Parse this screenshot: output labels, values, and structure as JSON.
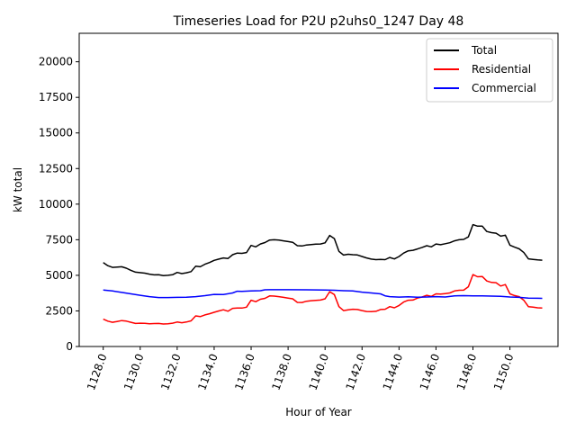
{
  "chart_data": {
    "type": "line",
    "title": "Timeseries Load for P2U p2uhs0_1247  Day 48",
    "xlabel": "Hour of Year",
    "ylabel": "kW total",
    "xlim": [
      1126.7,
      1152.6
    ],
    "ylim": [
      0,
      22000
    ],
    "x_ticks": [
      1128.0,
      1130.0,
      1132.0,
      1134.0,
      1136.0,
      1138.0,
      1140.0,
      1142.0,
      1144.0,
      1146.0,
      1148.0,
      1150.0
    ],
    "x_tick_labels": [
      "1128.0",
      "1130.0",
      "1132.0",
      "1134.0",
      "1136.0",
      "1138.0",
      "1140.0",
      "1142.0",
      "1144.0",
      "1146.0",
      "1148.0",
      "1150.0"
    ],
    "y_ticks": [
      0,
      2500,
      5000,
      7500,
      10000,
      12500,
      15000,
      17500,
      20000
    ],
    "y_tick_labels": [
      "0",
      "2500",
      "5000",
      "7500",
      "10000",
      "12500",
      "15000",
      "17500",
      "20000"
    ],
    "grid": false,
    "legend_position": "top-right",
    "series": [
      {
        "name": "Total",
        "color": "#000000",
        "points": [
          [
            1128.0,
            5900
          ],
          [
            1128.25,
            5680
          ],
          [
            1128.5,
            5560
          ],
          [
            1129.0,
            5600
          ],
          [
            1129.25,
            5500
          ],
          [
            1129.5,
            5350
          ],
          [
            1129.75,
            5220
          ],
          [
            1130.25,
            5150
          ],
          [
            1130.5,
            5080
          ],
          [
            1130.75,
            5030
          ],
          [
            1131.0,
            5040
          ],
          [
            1131.25,
            4980
          ],
          [
            1131.5,
            5000
          ],
          [
            1131.75,
            5040
          ],
          [
            1132.0,
            5200
          ],
          [
            1132.25,
            5120
          ],
          [
            1132.5,
            5180
          ],
          [
            1132.75,
            5260
          ],
          [
            1133.0,
            5640
          ],
          [
            1133.25,
            5600
          ],
          [
            1133.5,
            5780
          ],
          [
            1133.75,
            5900
          ],
          [
            1134.0,
            6050
          ],
          [
            1134.25,
            6140
          ],
          [
            1134.5,
            6220
          ],
          [
            1134.75,
            6180
          ],
          [
            1135.0,
            6450
          ],
          [
            1135.25,
            6560
          ],
          [
            1135.5,
            6540
          ],
          [
            1135.75,
            6600
          ],
          [
            1136.0,
            7100
          ],
          [
            1136.25,
            7000
          ],
          [
            1136.5,
            7200
          ],
          [
            1136.75,
            7300
          ],
          [
            1137.0,
            7480
          ],
          [
            1137.25,
            7500
          ],
          [
            1137.5,
            7470
          ],
          [
            1137.75,
            7420
          ],
          [
            1138.0,
            7370
          ],
          [
            1138.25,
            7320
          ],
          [
            1138.5,
            7080
          ],
          [
            1138.75,
            7060
          ],
          [
            1139.0,
            7130
          ],
          [
            1139.25,
            7160
          ],
          [
            1139.5,
            7190
          ],
          [
            1139.75,
            7200
          ],
          [
            1140.0,
            7280
          ],
          [
            1140.25,
            7800
          ],
          [
            1140.5,
            7580
          ],
          [
            1140.75,
            6680
          ],
          [
            1141.0,
            6420
          ],
          [
            1141.25,
            6480
          ],
          [
            1141.5,
            6450
          ],
          [
            1141.75,
            6430
          ],
          [
            1142.0,
            6320
          ],
          [
            1142.25,
            6220
          ],
          [
            1142.5,
            6140
          ],
          [
            1142.75,
            6100
          ],
          [
            1143.0,
            6120
          ],
          [
            1143.25,
            6100
          ],
          [
            1143.5,
            6250
          ],
          [
            1143.75,
            6150
          ],
          [
            1144.0,
            6320
          ],
          [
            1144.25,
            6560
          ],
          [
            1144.5,
            6720
          ],
          [
            1144.75,
            6760
          ],
          [
            1145.0,
            6850
          ],
          [
            1145.25,
            6960
          ],
          [
            1145.5,
            7080
          ],
          [
            1145.75,
            7000
          ],
          [
            1146.0,
            7200
          ],
          [
            1146.25,
            7150
          ],
          [
            1146.5,
            7220
          ],
          [
            1146.75,
            7290
          ],
          [
            1147.0,
            7420
          ],
          [
            1147.25,
            7500
          ],
          [
            1147.5,
            7520
          ],
          [
            1147.75,
            7700
          ],
          [
            1148.0,
            8560
          ],
          [
            1148.25,
            8450
          ],
          [
            1148.5,
            8450
          ],
          [
            1148.75,
            8080
          ],
          [
            1149.0,
            8000
          ],
          [
            1149.25,
            7960
          ],
          [
            1149.5,
            7750
          ],
          [
            1149.75,
            7820
          ],
          [
            1150.0,
            7120
          ],
          [
            1150.25,
            6980
          ],
          [
            1150.5,
            6860
          ],
          [
            1150.75,
            6600
          ],
          [
            1151.0,
            6160
          ],
          [
            1151.25,
            6120
          ],
          [
            1151.5,
            6080
          ],
          [
            1151.75,
            6060
          ]
        ]
      },
      {
        "name": "Residential",
        "color": "#ff0000",
        "points": [
          [
            1128.0,
            1920
          ],
          [
            1128.25,
            1780
          ],
          [
            1128.5,
            1700
          ],
          [
            1128.75,
            1760
          ],
          [
            1129.0,
            1820
          ],
          [
            1129.25,
            1780
          ],
          [
            1129.5,
            1700
          ],
          [
            1129.75,
            1620
          ],
          [
            1130.0,
            1640
          ],
          [
            1130.25,
            1630
          ],
          [
            1130.5,
            1600
          ],
          [
            1130.75,
            1610
          ],
          [
            1131.0,
            1620
          ],
          [
            1131.25,
            1580
          ],
          [
            1131.5,
            1600
          ],
          [
            1131.75,
            1640
          ],
          [
            1132.0,
            1720
          ],
          [
            1132.25,
            1670
          ],
          [
            1132.5,
            1720
          ],
          [
            1132.75,
            1800
          ],
          [
            1133.0,
            2150
          ],
          [
            1133.25,
            2100
          ],
          [
            1133.5,
            2220
          ],
          [
            1133.75,
            2300
          ],
          [
            1134.0,
            2400
          ],
          [
            1134.25,
            2500
          ],
          [
            1134.5,
            2580
          ],
          [
            1134.75,
            2480
          ],
          [
            1135.0,
            2680
          ],
          [
            1135.25,
            2700
          ],
          [
            1135.5,
            2700
          ],
          [
            1135.75,
            2760
          ],
          [
            1136.0,
            3250
          ],
          [
            1136.25,
            3150
          ],
          [
            1136.5,
            3320
          ],
          [
            1136.75,
            3380
          ],
          [
            1137.0,
            3550
          ],
          [
            1137.25,
            3540
          ],
          [
            1137.5,
            3500
          ],
          [
            1137.75,
            3450
          ],
          [
            1138.0,
            3400
          ],
          [
            1138.25,
            3350
          ],
          [
            1138.5,
            3100
          ],
          [
            1138.75,
            3090
          ],
          [
            1139.0,
            3180
          ],
          [
            1139.25,
            3220
          ],
          [
            1139.5,
            3240
          ],
          [
            1139.75,
            3260
          ],
          [
            1140.0,
            3350
          ],
          [
            1140.25,
            3850
          ],
          [
            1140.5,
            3650
          ],
          [
            1140.75,
            2800
          ],
          [
            1141.0,
            2520
          ],
          [
            1141.25,
            2580
          ],
          [
            1141.5,
            2620
          ],
          [
            1141.75,
            2600
          ],
          [
            1142.0,
            2520
          ],
          [
            1142.25,
            2460
          ],
          [
            1142.5,
            2450
          ],
          [
            1142.75,
            2470
          ],
          [
            1143.0,
            2600
          ],
          [
            1143.25,
            2620
          ],
          [
            1143.5,
            2800
          ],
          [
            1143.75,
            2720
          ],
          [
            1144.0,
            2880
          ],
          [
            1144.25,
            3120
          ],
          [
            1144.5,
            3250
          ],
          [
            1144.75,
            3260
          ],
          [
            1145.0,
            3400
          ],
          [
            1145.25,
            3480
          ],
          [
            1145.5,
            3600
          ],
          [
            1145.75,
            3520
          ],
          [
            1146.0,
            3700
          ],
          [
            1146.25,
            3680
          ],
          [
            1146.5,
            3720
          ],
          [
            1146.75,
            3760
          ],
          [
            1147.0,
            3900
          ],
          [
            1147.25,
            3950
          ],
          [
            1147.5,
            3960
          ],
          [
            1147.75,
            4200
          ],
          [
            1148.0,
            5050
          ],
          [
            1148.25,
            4900
          ],
          [
            1148.5,
            4920
          ],
          [
            1148.75,
            4600
          ],
          [
            1149.0,
            4500
          ],
          [
            1149.25,
            4480
          ],
          [
            1149.5,
            4250
          ],
          [
            1149.75,
            4350
          ],
          [
            1150.0,
            3700
          ],
          [
            1150.25,
            3580
          ],
          [
            1150.5,
            3500
          ],
          [
            1150.75,
            3250
          ],
          [
            1151.0,
            2800
          ],
          [
            1151.25,
            2760
          ],
          [
            1151.5,
            2720
          ],
          [
            1151.75,
            2700
          ]
        ]
      },
      {
        "name": "Commercial",
        "color": "#0000ff",
        "points": [
          [
            1128.0,
            3970
          ],
          [
            1128.5,
            3900
          ],
          [
            1129.0,
            3800
          ],
          [
            1129.5,
            3700
          ],
          [
            1130.0,
            3600
          ],
          [
            1130.5,
            3500
          ],
          [
            1131.0,
            3440
          ],
          [
            1131.5,
            3440
          ],
          [
            1132.0,
            3450
          ],
          [
            1132.5,
            3460
          ],
          [
            1133.0,
            3500
          ],
          [
            1133.5,
            3570
          ],
          [
            1134.0,
            3660
          ],
          [
            1134.5,
            3650
          ],
          [
            1135.0,
            3760
          ],
          [
            1135.25,
            3880
          ],
          [
            1135.5,
            3870
          ],
          [
            1136.0,
            3900
          ],
          [
            1136.5,
            3920
          ],
          [
            1136.75,
            3980
          ],
          [
            1137.0,
            3990
          ],
          [
            1138.0,
            3990
          ],
          [
            1139.0,
            3980
          ],
          [
            1140.0,
            3970
          ],
          [
            1140.5,
            3950
          ],
          [
            1141.0,
            3920
          ],
          [
            1141.5,
            3900
          ],
          [
            1142.0,
            3820
          ],
          [
            1142.5,
            3760
          ],
          [
            1143.0,
            3700
          ],
          [
            1143.25,
            3560
          ],
          [
            1143.5,
            3500
          ],
          [
            1144.0,
            3470
          ],
          [
            1144.5,
            3490
          ],
          [
            1145.0,
            3460
          ],
          [
            1145.5,
            3480
          ],
          [
            1146.0,
            3500
          ],
          [
            1146.5,
            3480
          ],
          [
            1147.0,
            3560
          ],
          [
            1147.5,
            3570
          ],
          [
            1148.0,
            3560
          ],
          [
            1148.5,
            3550
          ],
          [
            1149.0,
            3540
          ],
          [
            1149.5,
            3520
          ],
          [
            1150.0,
            3480
          ],
          [
            1150.5,
            3450
          ],
          [
            1151.0,
            3400
          ],
          [
            1151.5,
            3390
          ],
          [
            1151.75,
            3380
          ]
        ]
      }
    ]
  }
}
